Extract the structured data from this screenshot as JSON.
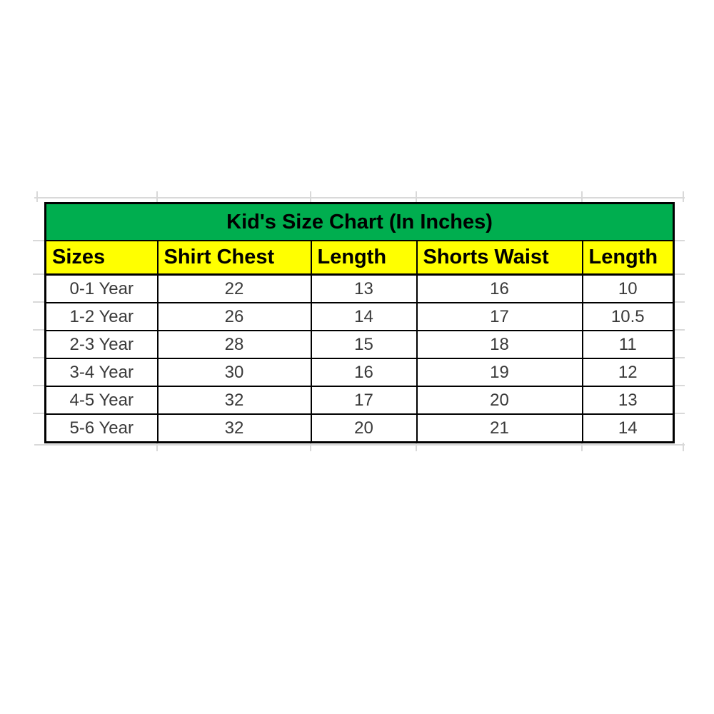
{
  "chart_data": {
    "type": "table",
    "title": "Kid's Size Chart (In Inches)",
    "units": "Inches",
    "columns": [
      "Sizes",
      "Shirt Chest",
      "Length",
      "Shorts Waist",
      "Length"
    ],
    "rows": [
      [
        "0-1 Year",
        "22",
        "13",
        "16",
        "10"
      ],
      [
        "1-2 Year",
        "26",
        "14",
        "17",
        "10.5"
      ],
      [
        "2-3 Year",
        "28",
        "15",
        "18",
        "11"
      ],
      [
        "3-4 Year",
        "30",
        "16",
        "19",
        "12"
      ],
      [
        "4-5 Year",
        "32",
        "17",
        "20",
        "13"
      ],
      [
        "5-6 Year",
        "32",
        "20",
        "21",
        "14"
      ]
    ],
    "colors": {
      "title_bg": "#00ae4f",
      "header_bg": "#ffff00",
      "border": "#000000",
      "text": "#000000",
      "data_text": "#3a3a3a",
      "gridline": "#d9d9d9"
    }
  }
}
